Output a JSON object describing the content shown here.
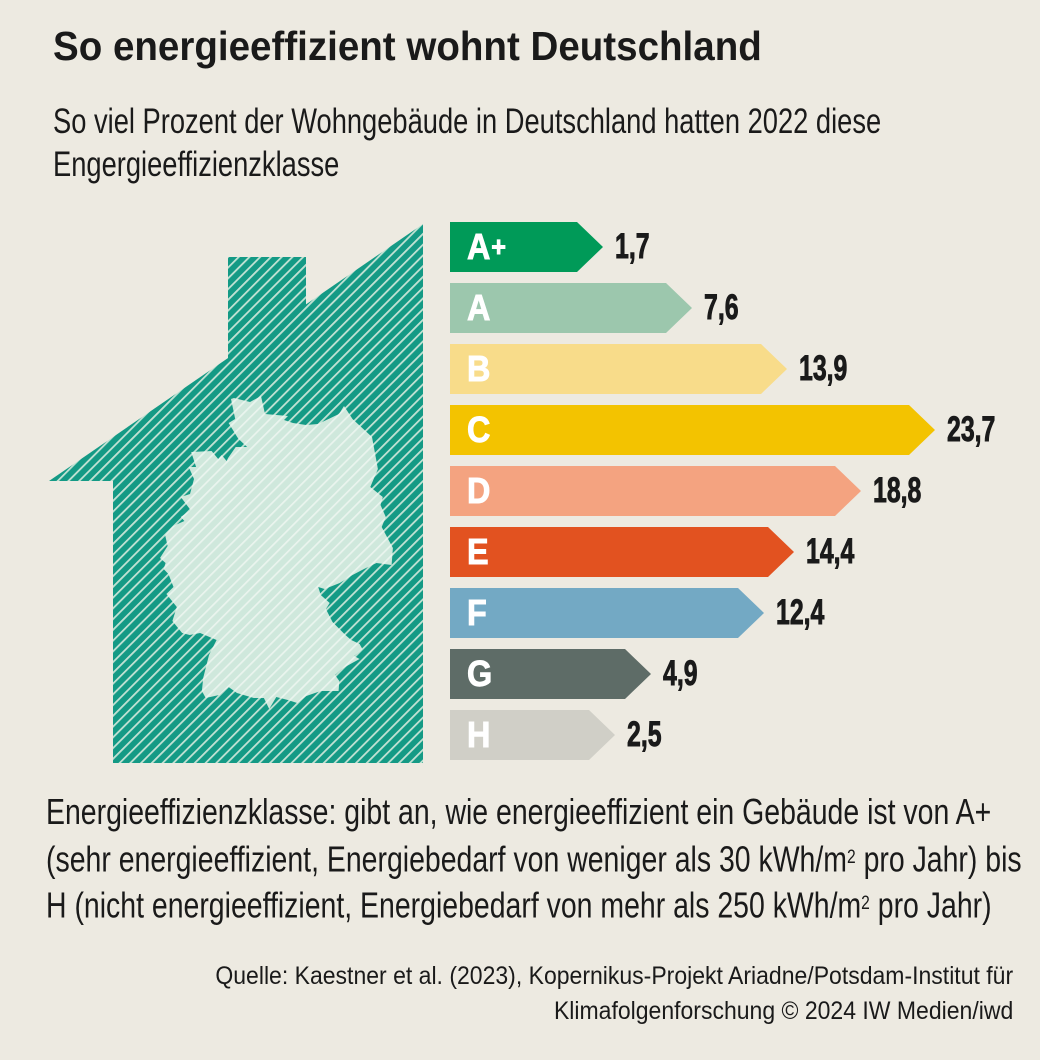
{
  "title": "So energieeffizient wohnt Deutschland",
  "subtitle_line1": "So viel Prozent der Wohngebäude in Deutschland hatten 2022 diese",
  "subtitle_line2": "Engergieeffizienzklasse",
  "chart_data": {
    "type": "bar",
    "orientation": "horizontal",
    "title": "So energieeffizient wohnt Deutschland",
    "subtitle": "So viel Prozent der Wohngebäude in Deutschland hatten 2022 diese Engergieeffizienzklasse",
    "unit": "Prozent",
    "year": "2022",
    "categories": [
      "A+",
      "A",
      "B",
      "C",
      "D",
      "E",
      "F",
      "G",
      "H"
    ],
    "values": [
      1.7,
      7.6,
      13.9,
      23.7,
      18.8,
      14.4,
      12.4,
      4.9,
      2.5
    ],
    "value_labels": [
      "1,7",
      "7,6",
      "13,9",
      "23,7",
      "18,8",
      "14,4",
      "12,4",
      "4,9",
      "2,5"
    ],
    "bar_colors": [
      "#009a58",
      "#9cc7ad",
      "#f8dc8a",
      "#f3c300",
      "#f4a380",
      "#e25220",
      "#73a9c4",
      "#5e6c67",
      "#d0cfc7"
    ],
    "xlim": [
      0,
      25
    ],
    "grid": false,
    "legend": false
  },
  "illustration": {
    "house_color": "#149a85",
    "house_hatch_color": "#c5e4d6",
    "map_color": "#cfe8dc",
    "map_hatch_color": "#ebf5ef"
  },
  "footnote_lines": [
    [
      {
        "t": "Energieeffizienzklasse: gibt an, wie energieeffizient ein Gebäude ist von A+"
      }
    ],
    [
      {
        "t": "(sehr energieeffizient, Energiebedarf von weniger als 30 kWh/m"
      },
      {
        "t": "2",
        "sup": true
      },
      {
        "t": " pro Jahr) bis"
      }
    ],
    [
      {
        "t": "H (nicht energieeffizient, Energiebedarf von mehr als 250 kWh/m"
      },
      {
        "t": "2",
        "sup": true
      },
      {
        "t": " pro Jahr)"
      }
    ]
  ],
  "source_line1": "Quelle: Kaestner et al. (2023), Kopernikus-Projekt Ariadne/Potsdam-Institut für",
  "source_line2": "Klimafolgenforschung © 2024 IW Medien/iwd"
}
